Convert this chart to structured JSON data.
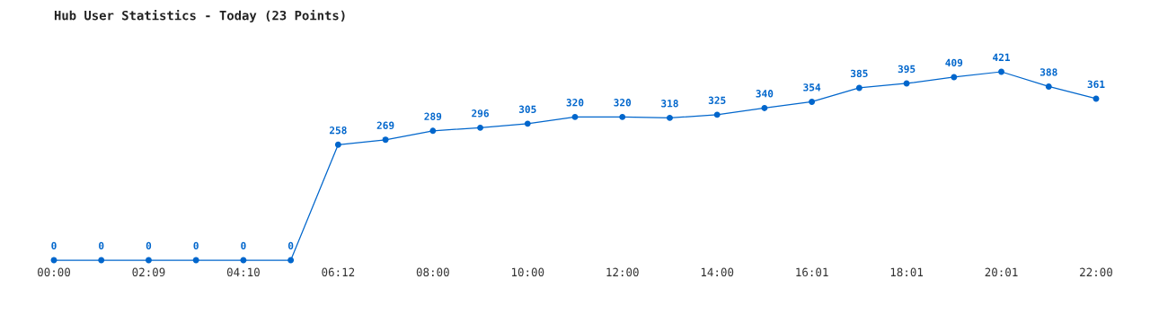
{
  "chart_data": {
    "type": "line",
    "title": "Hub User Statistics - Today (23 Points)",
    "categories": [
      "00:00",
      null,
      "02:09",
      null,
      "04:10",
      null,
      "06:12",
      null,
      "08:00",
      null,
      "10:00",
      null,
      "12:00",
      null,
      "14:00",
      null,
      "16:01",
      null,
      "18:01",
      null,
      "20:01",
      null,
      "22:00"
    ],
    "series": [
      {
        "color": "#0066cc",
        "values": [
          0,
          0,
          0,
          0,
          0,
          0,
          258,
          269,
          289,
          296,
          305,
          320,
          320,
          318,
          325,
          340,
          354,
          385,
          395,
          409,
          421,
          388,
          361
        ]
      }
    ],
    "data_labels": true,
    "marker": "circle",
    "grid": false,
    "legend": false
  }
}
